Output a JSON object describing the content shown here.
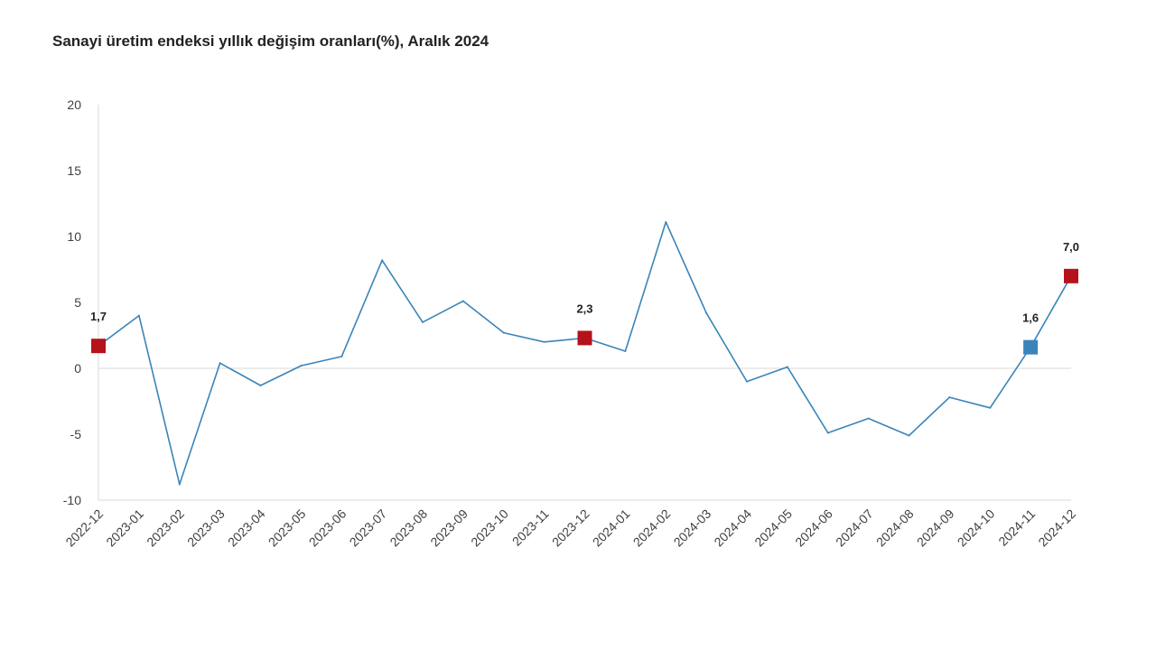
{
  "title": "Sanayi üretim endeksi yıllık değişim oranları(%), Aralık 2024",
  "chart_data": {
    "type": "line",
    "title": "Sanayi üretim endeksi yıllık değişim oranları(%), Aralık 2024",
    "xlabel": "",
    "ylabel": "",
    "ylim": [
      -10,
      20
    ],
    "yticks": [
      "20",
      "15",
      "10",
      "5",
      "0",
      "-5",
      "-10"
    ],
    "grid": false,
    "legend": "none",
    "line_color": "#3A84B9",
    "categories": [
      "2022-12",
      "2023-01",
      "2023-02",
      "2023-03",
      "2023-04",
      "2023-05",
      "2023-06",
      "2023-07",
      "2023-08",
      "2023-09",
      "2023-10",
      "2023-11",
      "2023-12",
      "2024-01",
      "2024-02",
      "2024-03",
      "2024-04",
      "2024-05",
      "2024-06",
      "2024-07",
      "2024-08",
      "2024-09",
      "2024-10",
      "2024-11",
      "2024-12"
    ],
    "series": [
      {
        "values": [
          1.7,
          4.0,
          -8.8,
          0.4,
          -1.3,
          0.2,
          0.9,
          8.2,
          3.5,
          5.1,
          2.7,
          2.0,
          2.3,
          1.3,
          11.1,
          4.2,
          -1.0,
          0.1,
          -4.9,
          -3.8,
          -5.1,
          -2.2,
          -3.0,
          1.6,
          7.0
        ]
      }
    ],
    "highlights": [
      {
        "category": "2022-12",
        "label": "1,7",
        "color": "#B5121B"
      },
      {
        "category": "2023-12",
        "label": "2,3",
        "color": "#B5121B"
      },
      {
        "category": "2024-11",
        "label": "1,6",
        "color": "#3A84B9"
      },
      {
        "category": "2024-12",
        "label": "7,0",
        "color": "#B5121B"
      }
    ]
  }
}
